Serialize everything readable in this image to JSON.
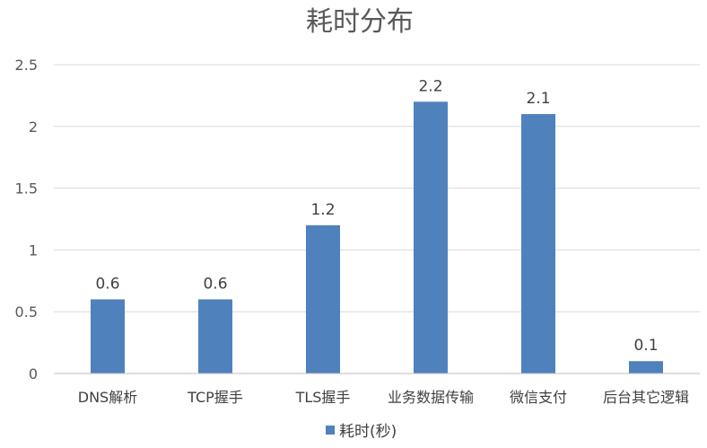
{
  "chart_data": {
    "type": "bar",
    "title": "耗时分布",
    "categories": [
      "DNS解析",
      "TCP握手",
      "TLS握手",
      "业务数据传输",
      "微信支付",
      "后台其它逻辑"
    ],
    "series": [
      {
        "name": "耗时(秒)",
        "values": [
          0.6,
          0.6,
          1.2,
          2.2,
          2.1,
          0.1
        ],
        "color": "#4f81bd"
      }
    ],
    "data_labels": [
      "0.6",
      "0.6",
      "1.2",
      "2.2",
      "2.1",
      "0.1"
    ],
    "y_ticks": [
      "0",
      "0.5",
      "1",
      "1.5",
      "2",
      "2.5"
    ],
    "ylim": [
      0,
      2.5
    ],
    "grid": true,
    "legend_position": "bottom"
  }
}
